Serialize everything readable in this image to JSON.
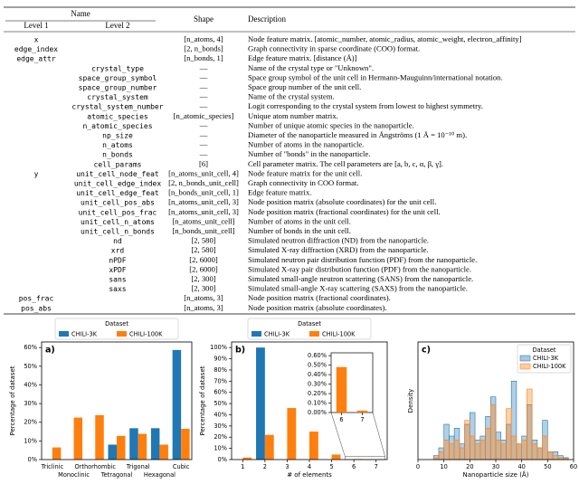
{
  "table": {
    "headers": {
      "name": "Name",
      "level_1": "Level 1",
      "level_2": "Level 2",
      "shape": "Shape",
      "description": "Description"
    },
    "rows": [
      [
        "x",
        null,
        "[n_atoms, 4]",
        "Node feature matrix. [atomic_number, atomic_radius, atomic_weight, electron_affinity]"
      ],
      [
        "edge_index",
        null,
        "[2, n_bonds]",
        "Graph connectivity in sparse coordinate (COO) format."
      ],
      [
        "edge_attr",
        null,
        "[n_bonds, 1]",
        "Edge feature matrix. [distance (Å)]"
      ],
      [
        null,
        "crystal_type",
        "—",
        "Name of the crystal type or \"Unknown\"."
      ],
      [
        null,
        "space_group_symbol",
        "—",
        "Space group symbol of the unit cell in Hermann-Mauguinn/international notation."
      ],
      [
        null,
        "space_group_number",
        "—",
        "Space group number of the unit cell."
      ],
      [
        null,
        "crystal_system",
        "—",
        "Name of the crystal system."
      ],
      [
        null,
        "crystal_system_number",
        "—",
        "Logit corresponding to the crystal system from lowest to highest symmetry."
      ],
      [
        null,
        "atomic_species",
        "[n_atomic_species]",
        "Unique atom number matrix."
      ],
      [
        null,
        "n_atomic_species",
        "—",
        "Number of unique atomic species in the nanoparticle."
      ],
      [
        null,
        "np_size",
        "—",
        "Diameter of the nanoparticle measured in Ångströms (1 Å = 10⁻¹⁰ m)."
      ],
      [
        null,
        "n_atoms",
        "—",
        "Number of atoms in the nanoparticle."
      ],
      [
        null,
        "n_bonds",
        "—",
        "Number of \"bonds\" in the nanoparticle."
      ],
      [
        null,
        "cell_params",
        "[6]",
        "Cell parameter matrix. The cell parameters are [a, b, c, α, β, γ]."
      ],
      [
        "y",
        "unit_cell_node_feat",
        "[n_atoms_unit_cell, 4]",
        "Node feature matrix for the unit cell."
      ],
      [
        null,
        "unit_cell_edge_index",
        "[2, n_bonds_unit_cell]",
        "Graph connectivity in COO format."
      ],
      [
        null,
        "unit_cell_edge_feat",
        "[n_bonds_unit_cell, 1]",
        "Edge feature matrix."
      ],
      [
        null,
        "unit_cell_pos_abs",
        "[n_atoms_unit_cell, 3]",
        "Node position matrix (absolute coordinates) for the unit cell."
      ],
      [
        null,
        "unit_cell_pos_frac",
        "[n_atoms_unit_cell, 3]",
        "Node position matrix (fractional coordinates) for the unit cell."
      ],
      [
        null,
        "unit_cell_n_atoms",
        "[n_atoms_unit_cell]",
        "Number of atoms in the unit cell."
      ],
      [
        null,
        "unit_cell_n_bonds",
        "[n_bonds_unit_cell]",
        "Number of bonds in the unit cell."
      ],
      [
        null,
        "nd",
        "[2, 580]",
        "Simulated neutron diffraction (ND) from the nanoparticle."
      ],
      [
        null,
        "xrd",
        "[2, 580]",
        "Simulated X-ray diffraction (XRD) from the nanoparticle."
      ],
      [
        null,
        "nPDF",
        "[2, 6000]",
        "Simulated neutron pair distribution function (PDF) from the nanoparticle."
      ],
      [
        null,
        "xPDF",
        "[2, 6000]",
        "Simulated X-ray pair distribution function (PDF) from the nanoparticle."
      ],
      [
        null,
        "sans",
        "[2, 300]",
        "Simulated small-angle neutron scattering (SANS) from the nanoparticle."
      ],
      [
        null,
        "saxs",
        "[2, 300]",
        "Simulated small-angle X-ray scattering (SAXS) from the nanoparticle."
      ],
      [
        "pos_frac",
        null,
        "[n_atoms, 3]",
        "Node position matrix (fractional coordinates)."
      ],
      [
        "pos_abs",
        null,
        "[n_atoms, 3]",
        "Node position matrix (absolute coordinates)."
      ]
    ]
  },
  "chart_data": [
    {
      "type": "bar",
      "panel_label": "a)",
      "legend_title": "Dataset",
      "legend": "top-outside",
      "categories": [
        "Triclinic",
        "Monoclinic",
        "Orthorhombic",
        "Tetragonal",
        "Trigonal",
        "Hexagonal",
        "Cubic"
      ],
      "series": [
        {
          "name": "CHILI-3K",
          "color": "#1f77b4",
          "values": [
            0,
            0,
            0,
            8,
            16.8,
            16.8,
            58.7
          ]
        },
        {
          "name": "CHILI-100K",
          "color": "#ff7f0e",
          "values": [
            6.5,
            22.5,
            23.8,
            12.7,
            13.8,
            8,
            16.5
          ]
        }
      ],
      "ylabel": "Percentage of dataset",
      "ylim": [
        0,
        63
      ],
      "yticks": [
        {
          "value": 0,
          "label": "0%"
        },
        {
          "value": 10,
          "label": "10%"
        },
        {
          "value": 20,
          "label": "20%"
        },
        {
          "value": 30,
          "label": "30%"
        },
        {
          "value": 40,
          "label": "40%"
        },
        {
          "value": 50,
          "label": "50%"
        },
        {
          "value": 60,
          "label": "60%"
        }
      ]
    },
    {
      "type": "bar",
      "panel_label": "b)",
      "legend_title": "Dataset",
      "legend": "top-outside",
      "x": [
        1,
        2,
        3,
        4,
        5,
        6,
        7
      ],
      "xlim": [
        0.5,
        7.5
      ],
      "xticks": [
        1,
        2,
        3,
        4,
        5,
        6,
        7
      ],
      "xlabel": "# of elements",
      "series": [
        {
          "name": "CHILI-3K",
          "color": "#1f77b4",
          "values": [
            0,
            100,
            0,
            0,
            0,
            0,
            0
          ]
        },
        {
          "name": "CHILI-100K",
          "color": "#ff7f0e",
          "values": [
            1.8,
            22,
            46,
            25,
            4.5,
            0.48,
            0.02
          ]
        }
      ],
      "ylabel": "Percentage of dataset",
      "ylim": [
        0,
        105
      ],
      "yticks": [
        {
          "value": 0,
          "label": "0%"
        },
        {
          "value": 10,
          "label": "10%"
        },
        {
          "value": 20,
          "label": "20%"
        },
        {
          "value": 30,
          "label": "30%"
        },
        {
          "value": 40,
          "label": "40%"
        },
        {
          "value": 50,
          "label": "50%"
        },
        {
          "value": 60,
          "label": "60%"
        },
        {
          "value": 70,
          "label": "70%"
        },
        {
          "value": 80,
          "label": "80%"
        },
        {
          "value": 90,
          "label": "90%"
        },
        {
          "value": 100,
          "label": "100%"
        }
      ],
      "inset": {
        "x": [
          6,
          7
        ],
        "xlim": [
          5.5,
          7.5
        ],
        "xticks": [
          6,
          7
        ],
        "values": [
          0.48,
          0.02
        ],
        "color": "#ff7f0e",
        "ylim": [
          0,
          0.63
        ],
        "yticks": [
          {
            "value": 0,
            "label": "0.00%"
          },
          {
            "value": 0.1,
            "label": "0.10%"
          },
          {
            "value": 0.2,
            "label": "0.20%"
          },
          {
            "value": 0.3,
            "label": "0.30%"
          },
          {
            "value": 0.4,
            "label": "0.40%"
          },
          {
            "value": 0.5,
            "label": "0.50%"
          },
          {
            "value": 0.6,
            "label": "0.60%"
          }
        ]
      }
    },
    {
      "type": "histogram",
      "panel_label": "c)",
      "legend_title": "Dataset",
      "legend": "upper right",
      "bins": [
        6,
        8,
        10,
        12,
        14,
        16,
        18,
        20,
        22,
        24,
        26,
        28,
        30,
        32,
        34,
        36,
        38,
        40,
        42,
        44,
        46,
        48,
        50,
        52,
        54,
        56,
        58
      ],
      "series": [
        {
          "name": "CHILI-3K",
          "color": "#1f77b4",
          "values": [
            0.01,
            0.03,
            0.09,
            0.06,
            0.08,
            0.04,
            0.09,
            0.12,
            0.05,
            0.06,
            0.11,
            0.16,
            0.07,
            0.05,
            0.09,
            0.2,
            0.04,
            0.06,
            0.14,
            0.05,
            0.03,
            0.1,
            0.02,
            0.02,
            0.01,
            0.005
          ]
        },
        {
          "name": "CHILI-100K",
          "color": "#ff7f0e",
          "values": [
            0.005,
            0.02,
            0.05,
            0.04,
            0.05,
            0.03,
            0.1,
            0.06,
            0.04,
            0.05,
            0.08,
            0.14,
            0.05,
            0.04,
            0.13,
            0.06,
            0.04,
            0.05,
            0.18,
            0.04,
            0.03,
            0.06,
            0.02,
            0.01,
            0.005,
            0.003
          ]
        }
      ],
      "xlim": [
        0,
        60
      ],
      "xticks": [
        0,
        10,
        20,
        30,
        40,
        50,
        60
      ],
      "xlabel": "Nanoparticle size (Å)",
      "ylabel": "Density",
      "ylim": [
        0,
        0.3
      ]
    }
  ]
}
